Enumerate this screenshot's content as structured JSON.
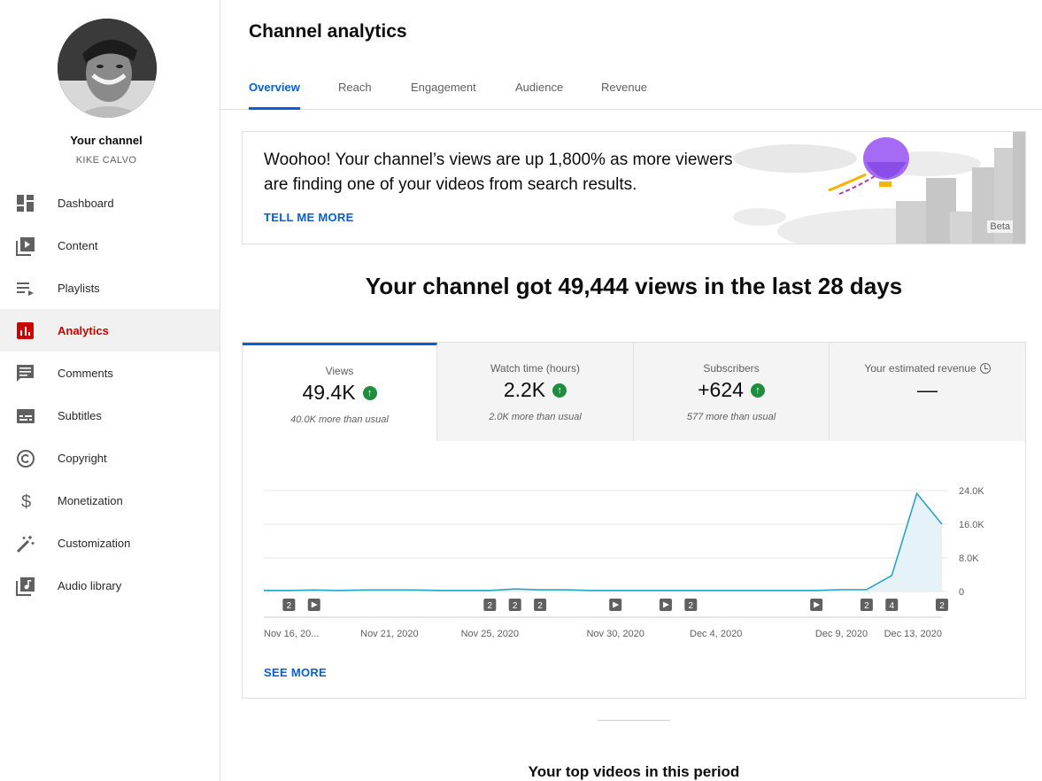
{
  "sidebar": {
    "channel_title": "Your channel",
    "channel_name": "KIKE CALVO",
    "items": [
      {
        "label": "Dashboard",
        "icon": "dashboard-icon"
      },
      {
        "label": "Content",
        "icon": "content-icon"
      },
      {
        "label": "Playlists",
        "icon": "playlists-icon"
      },
      {
        "label": "Analytics",
        "icon": "analytics-icon",
        "active": true
      },
      {
        "label": "Comments",
        "icon": "comments-icon"
      },
      {
        "label": "Subtitles",
        "icon": "subtitles-icon"
      },
      {
        "label": "Copyright",
        "icon": "copyright-icon"
      },
      {
        "label": "Monetization",
        "icon": "monetization-icon"
      },
      {
        "label": "Customization",
        "icon": "customization-icon"
      },
      {
        "label": "Audio library",
        "icon": "audio-library-icon"
      }
    ]
  },
  "header": {
    "title": "Channel analytics",
    "tabs": [
      "Overview",
      "Reach",
      "Engagement",
      "Audience",
      "Revenue"
    ],
    "active_tab": "Overview"
  },
  "banner": {
    "text": "Woohoo! Your channel’s views are up 1,800% as more viewers are finding one of your videos from search results.",
    "link": "TELL ME MORE",
    "badge": "Beta"
  },
  "headline": "Your channel got 49,444 views in the last 28 days",
  "metrics": [
    {
      "label": "Views",
      "value": "49.4K",
      "trend": "up",
      "sub": "40.0K more than usual"
    },
    {
      "label": "Watch time (hours)",
      "value": "2.2K",
      "trend": "up",
      "sub": "2.0K more than usual"
    },
    {
      "label": "Subscribers",
      "value": "+624",
      "trend": "up",
      "sub": "577 more than usual"
    },
    {
      "label": "Your estimated revenue",
      "value": "—",
      "icon": "clock-icon"
    }
  ],
  "chart_data": {
    "type": "area",
    "ylim": [
      0,
      24000
    ],
    "y_ticks": [
      "24.0K",
      "16.0K",
      "8.0K",
      "0"
    ],
    "y_tick_values": [
      24000,
      16000,
      8000,
      0
    ],
    "x_labels": [
      "Nov 16, 20...",
      "Nov 21, 2020",
      "Nov 25, 2020",
      "Nov 30, 2020",
      "Dec 4, 2020",
      "Dec 9, 2020",
      "Dec 13, 2020"
    ],
    "x_label_days": [
      0,
      5,
      9,
      14,
      18,
      23,
      27
    ],
    "values": [
      250,
      250,
      350,
      250,
      350,
      350,
      350,
      250,
      250,
      250,
      600,
      400,
      400,
      250,
      250,
      250,
      250,
      250,
      250,
      250,
      250,
      250,
      250,
      450,
      450,
      3800,
      23300,
      16000
    ],
    "color": "#2ba3c7",
    "fill": "#e5f3f8",
    "markers": [
      {
        "day": 1,
        "type": "count",
        "label": "2"
      },
      {
        "day": 2,
        "type": "video"
      },
      {
        "day": 9,
        "type": "count",
        "label": "2"
      },
      {
        "day": 10,
        "type": "count",
        "label": "2"
      },
      {
        "day": 11,
        "type": "count",
        "label": "2"
      },
      {
        "day": 14,
        "type": "video"
      },
      {
        "day": 16,
        "type": "video"
      },
      {
        "day": 17,
        "type": "count",
        "label": "2"
      },
      {
        "day": 22,
        "type": "video"
      },
      {
        "day": 24,
        "type": "count",
        "label": "2"
      },
      {
        "day": 25,
        "type": "count",
        "label": "4"
      },
      {
        "day": 27,
        "type": "count",
        "label": "2"
      }
    ]
  },
  "see_more": "SEE MORE",
  "top_videos_title": "Your top videos in this period"
}
